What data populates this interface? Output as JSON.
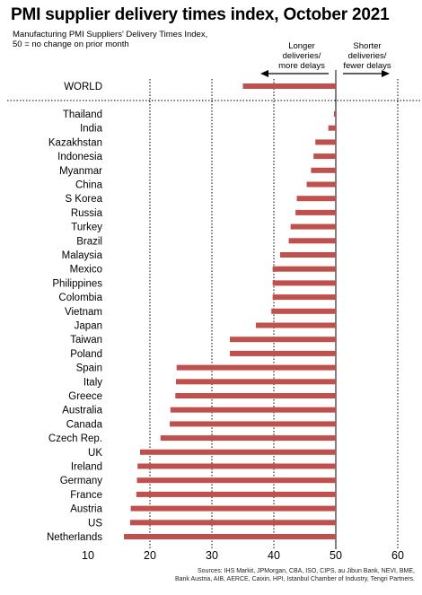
{
  "title": "PMI supplier delivery times index, October 2021",
  "subtitle_lines": [
    "Manufacturing PMI Suppliers' Delivery Times Index,",
    "50 = no change on prior month"
  ],
  "direction_left_lines": [
    "Longer",
    "deliveries/",
    "more delays"
  ],
  "direction_right_lines": [
    "Shorter",
    "deliveries/",
    "fewer delays"
  ],
  "sources_lines": [
    "Sources: IHS Markit, JPMorgan, CBA, ISO, CIPS, au Jibun Bank, NEVI, BME,",
    "Bank Austria, AIB, AERCE, Caixin, HPI, Istanbul Chamber of Industry, Tengri Partners."
  ],
  "colors": {
    "bar": "#c0504d",
    "grid": "#000000",
    "text": "#000000"
  },
  "chart_data": {
    "type": "bar",
    "orientation": "horizontal",
    "baseline": 50,
    "xlim": [
      10,
      60
    ],
    "xticks": [
      "10",
      "20",
      "30",
      "40",
      "50",
      "60"
    ],
    "grid": "vertical dotted",
    "world": {
      "category": "WORLD",
      "value": 35
    },
    "categories": [
      "Thailand",
      "India",
      "Kazakhstan",
      "Indonesia",
      "Myanmar",
      "China",
      "S Korea",
      "Russia",
      "Turkey",
      "Brazil",
      "Malaysia",
      "Mexico",
      "Philippines",
      "Colombia",
      "Vietnam",
      "Japan",
      "Taiwan",
      "Poland",
      "Spain",
      "Italy",
      "Greece",
      "Australia",
      "Canada",
      "Czech Rep.",
      "UK",
      "Ireland",
      "Germany",
      "France",
      "Austria",
      "US",
      "Netherlands"
    ],
    "values": [
      49.7,
      48.8,
      46.7,
      46.4,
      46.0,
      45.3,
      43.7,
      43.5,
      42.7,
      42.4,
      41.0,
      39.8,
      39.8,
      39.8,
      39.6,
      37.1,
      32.9,
      32.9,
      24.3,
      24.2,
      24.1,
      23.3,
      23.2,
      21.7,
      18.4,
      18.0,
      17.9,
      17.8,
      16.9,
      16.8,
      15.8
    ]
  }
}
